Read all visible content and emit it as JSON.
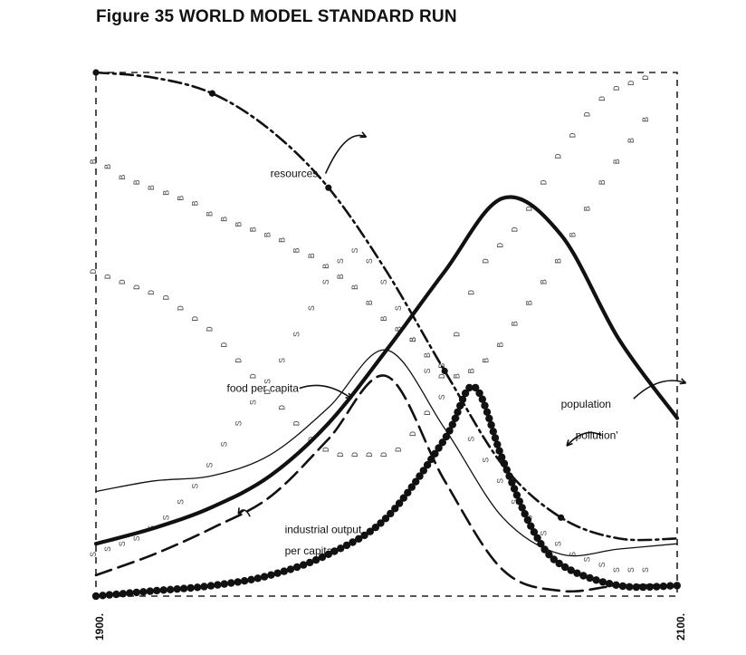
{
  "title": "Figure 35 WORLD MODEL STANDARD RUN",
  "chart_data": {
    "type": "line",
    "xlim": [
      1900,
      2100
    ],
    "ylim": [
      0,
      1
    ],
    "x_ticks": [
      "1900.",
      "2100."
    ],
    "grid": false,
    "series": [
      {
        "name": "resources",
        "style": "dash-dot",
        "x": [
          1900,
          1920,
          1940,
          1960,
          1980,
          2000,
          2020,
          2040,
          2060,
          2080,
          2100
        ],
        "y": [
          1.0,
          0.99,
          0.96,
          0.89,
          0.78,
          0.62,
          0.43,
          0.25,
          0.15,
          0.11,
          0.11
        ]
      },
      {
        "name": "population",
        "style": "thick",
        "x": [
          1900,
          1920,
          1940,
          1960,
          1980,
          2000,
          2020,
          2040,
          2060,
          2080,
          2100
        ],
        "y": [
          0.1,
          0.13,
          0.17,
          0.23,
          0.33,
          0.47,
          0.62,
          0.76,
          0.69,
          0.49,
          0.34
        ]
      },
      {
        "name": "pollution",
        "style": "dots",
        "x": [
          1900,
          1920,
          1940,
          1960,
          1980,
          2000,
          2020,
          2030,
          2040,
          2050,
          2060,
          2080,
          2100
        ],
        "y": [
          0.0,
          0.01,
          0.02,
          0.04,
          0.08,
          0.15,
          0.3,
          0.4,
          0.26,
          0.13,
          0.06,
          0.02,
          0.02
        ]
      },
      {
        "name": "food per capita",
        "style": "thin",
        "x": [
          1900,
          1920,
          1940,
          1960,
          1980,
          2000,
          2020,
          2040,
          2060,
          2080,
          2100
        ],
        "y": [
          0.2,
          0.22,
          0.23,
          0.27,
          0.36,
          0.47,
          0.32,
          0.15,
          0.08,
          0.09,
          0.1
        ]
      },
      {
        "name": "industrial output per capita",
        "style": "dashed",
        "x": [
          1900,
          1920,
          1940,
          1960,
          1980,
          2000,
          2020,
          2040,
          2060,
          2080,
          2100
        ],
        "y": [
          0.04,
          0.08,
          0.13,
          0.19,
          0.3,
          0.42,
          0.22,
          0.05,
          0.01,
          0.02,
          0.02
        ]
      }
    ],
    "annotations": [
      {
        "label": "resources",
        "x": 1960,
        "y": 0.8
      },
      {
        "label": "food per capita",
        "x": 1945,
        "y": 0.39
      },
      {
        "label": "industrial output",
        "x": 1965,
        "y": 0.12
      },
      {
        "label": "per capita",
        "x": 1965,
        "y": 0.08
      },
      {
        "label": "population",
        "x": 2060,
        "y": 0.36
      },
      {
        "label": "pollution'",
        "x": 2065,
        "y": 0.3
      }
    ],
    "marker_series": [
      {
        "letter": "B",
        "x": [
          1900,
          1905,
          1910,
          1915,
          1920,
          1925,
          1930,
          1935,
          1940,
          1945,
          1950,
          1955,
          1960,
          1965,
          1970,
          1975,
          1980,
          1985,
          1990,
          1995,
          2000,
          2005,
          2010,
          2015,
          2020,
          2025,
          2030,
          2035,
          2040,
          2045,
          2050,
          2055,
          2060,
          2065,
          2070,
          2075,
          2080,
          2085,
          2090
        ],
        "y": [
          0.83,
          0.82,
          0.8,
          0.79,
          0.78,
          0.77,
          0.76,
          0.75,
          0.73,
          0.72,
          0.71,
          0.7,
          0.69,
          0.68,
          0.66,
          0.65,
          0.63,
          0.61,
          0.59,
          0.56,
          0.53,
          0.51,
          0.49,
          0.46,
          0.44,
          0.42,
          0.43,
          0.45,
          0.48,
          0.52,
          0.56,
          0.6,
          0.64,
          0.69,
          0.74,
          0.79,
          0.83,
          0.87,
          0.91
        ]
      },
      {
        "letter": "D",
        "x": [
          1900,
          1905,
          1910,
          1915,
          1920,
          1925,
          1930,
          1935,
          1940,
          1945,
          1950,
          1955,
          1960,
          1965,
          1970,
          1975,
          1980,
          1985,
          1990,
          1995,
          2000,
          2005,
          2010,
          2015,
          2020,
          2025,
          2030,
          2035,
          2040,
          2045,
          2050,
          2055,
          2060,
          2065,
          2070,
          2075,
          2080,
          2085,
          2090
        ],
        "y": [
          0.62,
          0.61,
          0.6,
          0.59,
          0.58,
          0.57,
          0.55,
          0.53,
          0.51,
          0.48,
          0.45,
          0.42,
          0.39,
          0.36,
          0.33,
          0.3,
          0.28,
          0.27,
          0.27,
          0.27,
          0.27,
          0.28,
          0.31,
          0.35,
          0.42,
          0.5,
          0.58,
          0.64,
          0.67,
          0.7,
          0.74,
          0.79,
          0.84,
          0.88,
          0.92,
          0.95,
          0.97,
          0.98,
          0.99
        ]
      },
      {
        "letter": "S",
        "x": [
          1900,
          1905,
          1910,
          1915,
          1920,
          1925,
          1930,
          1935,
          1940,
          1945,
          1950,
          1955,
          1960,
          1965,
          1970,
          1975,
          1980,
          1985,
          1990,
          1995,
          2000,
          2005,
          2010,
          2015,
          2020,
          2025,
          2030,
          2035,
          2040,
          2045,
          2050,
          2055,
          2060,
          2065,
          2070,
          2075,
          2080,
          2085,
          2090
        ],
        "y": [
          0.08,
          0.09,
          0.1,
          0.11,
          0.13,
          0.15,
          0.18,
          0.21,
          0.25,
          0.29,
          0.33,
          0.37,
          0.41,
          0.45,
          0.5,
          0.55,
          0.6,
          0.64,
          0.66,
          0.64,
          0.6,
          0.55,
          0.49,
          0.43,
          0.38,
          0.34,
          0.3,
          0.26,
          0.22,
          0.18,
          0.15,
          0.12,
          0.1,
          0.08,
          0.07,
          0.06,
          0.05,
          0.05,
          0.05
        ]
      }
    ]
  }
}
